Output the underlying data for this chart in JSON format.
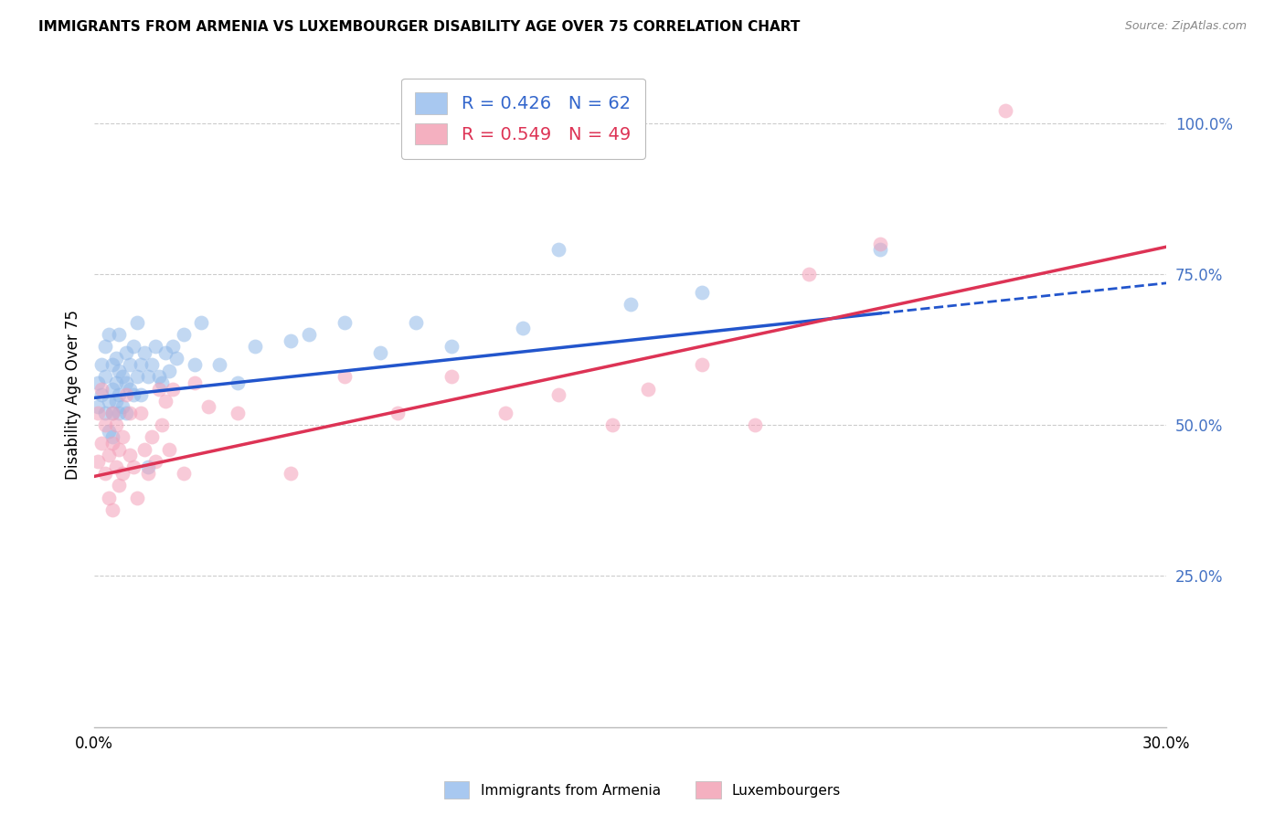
{
  "title": "IMMIGRANTS FROM ARMENIA VS LUXEMBOURGER DISABILITY AGE OVER 75 CORRELATION CHART",
  "source": "Source: ZipAtlas.com",
  "ylabel": "Disability Age Over 75",
  "x_min": 0.0,
  "x_max": 0.3,
  "y_min": 0.0,
  "y_max": 1.1,
  "y_ticks_right": [
    0.25,
    0.5,
    0.75,
    1.0
  ],
  "y_tick_labels_right": [
    "25.0%",
    "50.0%",
    "75.0%",
    "100.0%"
  ],
  "legend_blue_label": "R = 0.426   N = 62",
  "legend_pink_label": "R = 0.549   N = 49",
  "legend_blue_color": "#a8c8f0",
  "legend_pink_color": "#f4b0c0",
  "dot_blue_color": "#90b8e8",
  "dot_pink_color": "#f4a0b8",
  "line_blue_color": "#2255cc",
  "line_pink_color": "#dd3355",
  "label_color_blue": "#3366cc",
  "label_color_pink": "#dd3355",
  "label_color_right": "#4472c4",
  "label_blue": "Immigrants from Armenia",
  "label_pink": "Luxembourgers",
  "blue_line_x0": 0.0,
  "blue_line_y0": 0.545,
  "blue_line_x1": 0.22,
  "blue_line_y1": 0.685,
  "blue_line_dash_x1": 0.3,
  "blue_line_dash_y1": 0.735,
  "pink_line_x0": 0.0,
  "pink_line_y0": 0.415,
  "pink_line_x1": 0.3,
  "pink_line_y1": 0.795,
  "blue_scatter_x": [
    0.001,
    0.001,
    0.002,
    0.002,
    0.003,
    0.003,
    0.003,
    0.004,
    0.004,
    0.004,
    0.005,
    0.005,
    0.005,
    0.005,
    0.006,
    0.006,
    0.006,
    0.007,
    0.007,
    0.007,
    0.007,
    0.008,
    0.008,
    0.009,
    0.009,
    0.009,
    0.01,
    0.01,
    0.011,
    0.011,
    0.012,
    0.012,
    0.013,
    0.013,
    0.014,
    0.015,
    0.015,
    0.016,
    0.017,
    0.018,
    0.019,
    0.02,
    0.021,
    0.022,
    0.023,
    0.025,
    0.028,
    0.03,
    0.035,
    0.04,
    0.045,
    0.055,
    0.06,
    0.07,
    0.08,
    0.09,
    0.1,
    0.12,
    0.13,
    0.15,
    0.17,
    0.22
  ],
  "blue_scatter_y": [
    0.53,
    0.57,
    0.55,
    0.6,
    0.52,
    0.58,
    0.63,
    0.54,
    0.49,
    0.65,
    0.56,
    0.52,
    0.6,
    0.48,
    0.57,
    0.54,
    0.61,
    0.59,
    0.55,
    0.52,
    0.65,
    0.58,
    0.53,
    0.62,
    0.57,
    0.52,
    0.6,
    0.56,
    0.63,
    0.55,
    0.67,
    0.58,
    0.6,
    0.55,
    0.62,
    0.58,
    0.43,
    0.6,
    0.63,
    0.58,
    0.57,
    0.62,
    0.59,
    0.63,
    0.61,
    0.65,
    0.6,
    0.67,
    0.6,
    0.57,
    0.63,
    0.64,
    0.65,
    0.67,
    0.62,
    0.67,
    0.63,
    0.66,
    0.79,
    0.7,
    0.72,
    0.79
  ],
  "pink_scatter_x": [
    0.001,
    0.001,
    0.002,
    0.002,
    0.003,
    0.003,
    0.004,
    0.004,
    0.005,
    0.005,
    0.005,
    0.006,
    0.006,
    0.007,
    0.007,
    0.008,
    0.008,
    0.009,
    0.01,
    0.01,
    0.011,
    0.012,
    0.013,
    0.014,
    0.015,
    0.016,
    0.017,
    0.018,
    0.019,
    0.02,
    0.021,
    0.022,
    0.025,
    0.028,
    0.032,
    0.04,
    0.055,
    0.07,
    0.085,
    0.1,
    0.115,
    0.13,
    0.145,
    0.155,
    0.17,
    0.185,
    0.2,
    0.22,
    0.255
  ],
  "pink_scatter_y": [
    0.44,
    0.52,
    0.47,
    0.56,
    0.42,
    0.5,
    0.38,
    0.45,
    0.36,
    0.52,
    0.47,
    0.43,
    0.5,
    0.4,
    0.46,
    0.48,
    0.42,
    0.55,
    0.45,
    0.52,
    0.43,
    0.38,
    0.52,
    0.46,
    0.42,
    0.48,
    0.44,
    0.56,
    0.5,
    0.54,
    0.46,
    0.56,
    0.42,
    0.57,
    0.53,
    0.52,
    0.42,
    0.58,
    0.52,
    0.58,
    0.52,
    0.55,
    0.5,
    0.56,
    0.6,
    0.5,
    0.75,
    0.8,
    1.02
  ],
  "background_color": "#ffffff",
  "grid_color": "#cccccc"
}
